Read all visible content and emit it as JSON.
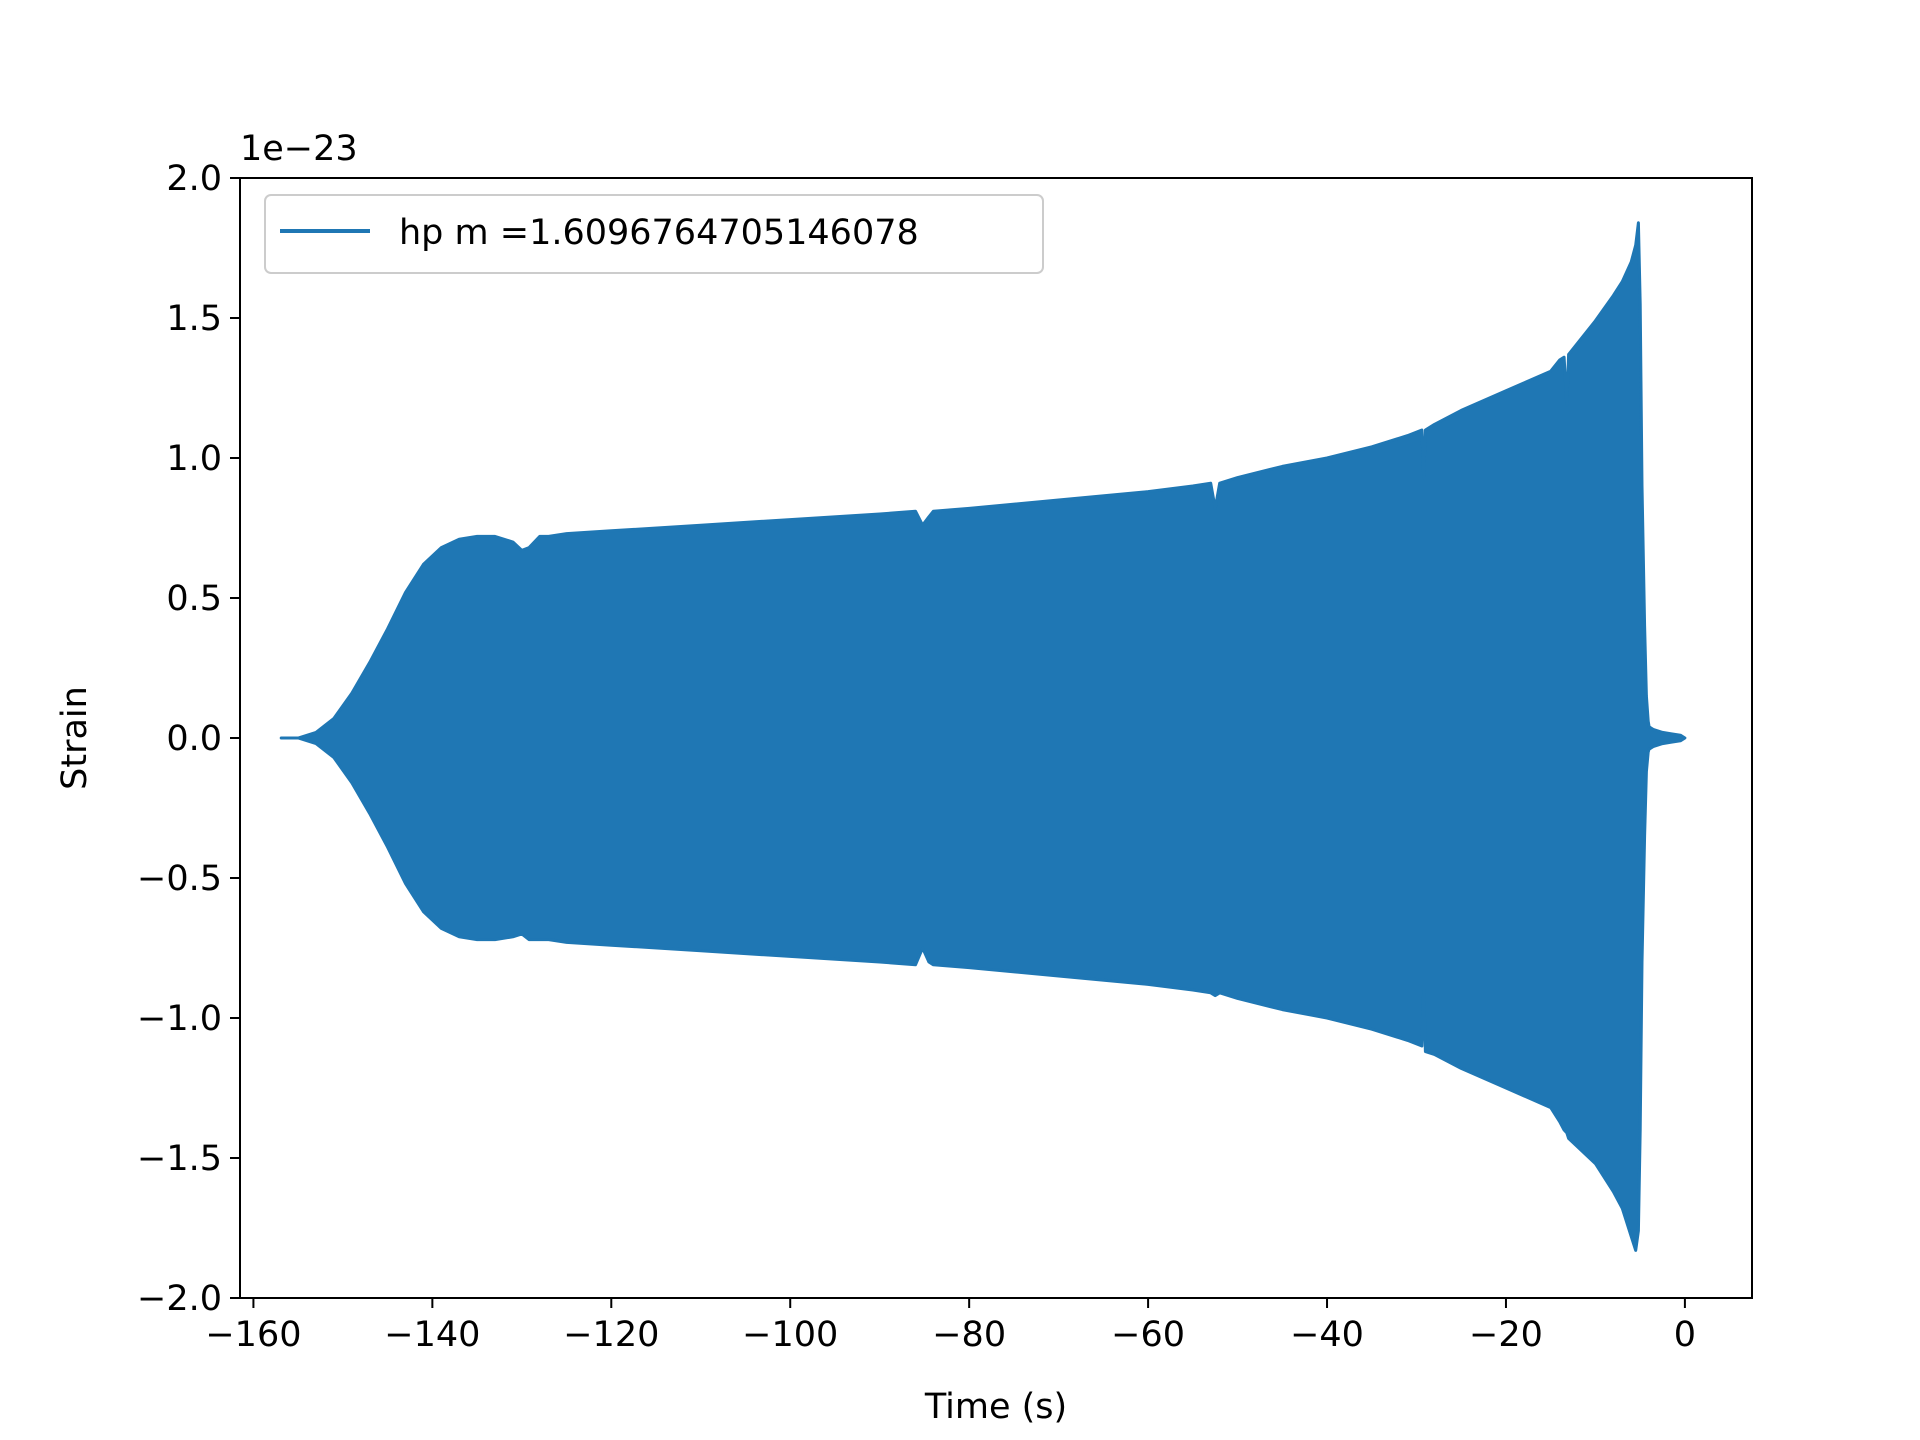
{
  "chart_data": {
    "type": "line",
    "title": "",
    "xlabel": "Time (s)",
    "ylabel": "Strain",
    "offset_text": "1e−23",
    "y_scale_factor": 1e-23,
    "xlim": [
      -161.5,
      7.5
    ],
    "ylim": [
      -2.0,
      2.0
    ],
    "x_ticks": [
      -160,
      -140,
      -120,
      -100,
      -80,
      -60,
      -40,
      -20,
      0
    ],
    "x_tick_labels": [
      "−160",
      "−140",
      "−120",
      "−100",
      "−80",
      "−60",
      "−40",
      "−20",
      "0"
    ],
    "y_ticks": [
      -2.0,
      -1.5,
      -1.0,
      -0.5,
      0.0,
      0.5,
      1.0,
      1.5,
      2.0
    ],
    "y_tick_labels": [
      "−2.0",
      "−1.5",
      "−1.0",
      "−0.5",
      "0.0",
      "0.5",
      "1.0",
      "1.5",
      "2.0"
    ],
    "grid": false,
    "legend_position": "upper-left",
    "series": [
      {
        "name": "hp m =1.6096764705146078",
        "color": "#1f77b4",
        "envelope_upper": {
          "x": [
            -156.9,
            -155,
            -153,
            -151,
            -149,
            -147,
            -145,
            -143,
            -141,
            -139,
            -137,
            -135,
            -133,
            -131,
            -130,
            -129.2,
            -128,
            -127,
            -125,
            -120,
            -110,
            -100,
            -90,
            -86,
            -85.2,
            -84.5,
            -84,
            -80,
            -70,
            -60,
            -55,
            -53,
            -52.5,
            -52,
            -50,
            -45,
            -40,
            -35,
            -31,
            -29.4,
            -29.2,
            -29,
            -28,
            -25,
            -20,
            -15,
            -14,
            -13.5,
            -13.2,
            -13,
            -10,
            -8,
            -7,
            -6,
            -5.5,
            -5.2,
            -5.0,
            -4.8,
            -4.5,
            -4.3,
            -4.1,
            -4.0,
            -3.5,
            -2.5,
            -1.5,
            -0.5,
            0.0
          ],
          "y": [
            0.0,
            0.0,
            0.02,
            0.07,
            0.16,
            0.27,
            0.39,
            0.52,
            0.62,
            0.68,
            0.71,
            0.72,
            0.72,
            0.7,
            0.67,
            0.68,
            0.72,
            0.72,
            0.73,
            0.74,
            0.76,
            0.78,
            0.8,
            0.81,
            0.76,
            0.79,
            0.81,
            0.82,
            0.85,
            0.88,
            0.9,
            0.91,
            0.82,
            0.91,
            0.93,
            0.97,
            1.0,
            1.04,
            1.08,
            1.1,
            0.93,
            1.1,
            1.12,
            1.17,
            1.24,
            1.31,
            1.35,
            1.36,
            1.19,
            1.37,
            1.49,
            1.58,
            1.63,
            1.7,
            1.76,
            1.84,
            1.55,
            0.9,
            0.4,
            0.15,
            0.06,
            0.04,
            0.03,
            0.02,
            0.015,
            0.01,
            0.0
          ]
        },
        "envelope_lower": {
          "x": [
            -156.9,
            -155,
            -153,
            -151,
            -149,
            -147,
            -145,
            -143,
            -141,
            -139,
            -137,
            -135,
            -133,
            -131,
            -130,
            -129.2,
            -128,
            -127,
            -125,
            -120,
            -110,
            -100,
            -90,
            -86,
            -85.2,
            -84.5,
            -84,
            -80,
            -70,
            -60,
            -55,
            -53,
            -52.5,
            -52,
            -50,
            -45,
            -40,
            -35,
            -31,
            -29.4,
            -29.2,
            -29,
            -28,
            -25,
            -20,
            -15,
            -14,
            -13.5,
            -13.2,
            -13,
            -10,
            -8,
            -7,
            -6,
            -5.5,
            -5.2,
            -5.0,
            -4.8,
            -4.5,
            -4.3,
            -4.1,
            -4.0,
            -3.5,
            -2.5,
            -1.5,
            -0.5,
            0.0
          ],
          "y": [
            0.0,
            0.0,
            -0.02,
            -0.07,
            -0.16,
            -0.27,
            -0.39,
            -0.52,
            -0.62,
            -0.68,
            -0.71,
            -0.72,
            -0.72,
            -0.71,
            -0.7,
            -0.72,
            -0.72,
            -0.72,
            -0.73,
            -0.74,
            -0.76,
            -0.78,
            -0.8,
            -0.81,
            -0.75,
            -0.8,
            -0.81,
            -0.82,
            -0.85,
            -0.88,
            -0.9,
            -0.91,
            -0.92,
            -0.91,
            -0.93,
            -0.97,
            -1.0,
            -1.04,
            -1.08,
            -1.1,
            -0.9,
            -1.12,
            -1.13,
            -1.18,
            -1.25,
            -1.32,
            -1.37,
            -1.4,
            -1.41,
            -1.43,
            -1.52,
            -1.62,
            -1.68,
            -1.78,
            -1.83,
            -1.76,
            -1.4,
            -0.8,
            -0.35,
            -0.12,
            -0.05,
            -0.04,
            -0.03,
            -0.02,
            -0.015,
            -0.01,
            0.0
          ]
        }
      }
    ]
  }
}
